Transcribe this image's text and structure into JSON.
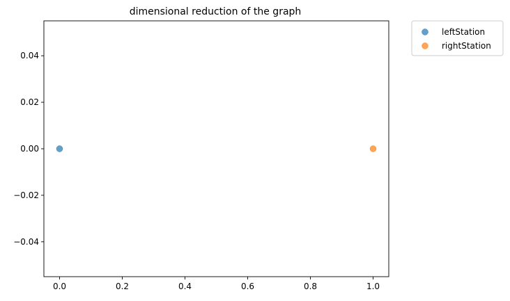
{
  "chart_data": {
    "type": "scatter",
    "title": "dimensional reduction of the graph",
    "xlabel": "",
    "ylabel": "",
    "xlim": [
      -0.05,
      1.05
    ],
    "ylim": [
      -0.055,
      0.055
    ],
    "xticks": [
      0.0,
      0.2,
      0.4,
      0.6,
      0.8,
      1.0
    ],
    "xtick_labels": [
      "0.0",
      "0.2",
      "0.4",
      "0.6",
      "0.8",
      "1.0"
    ],
    "yticks": [
      -0.04,
      -0.02,
      0.0,
      0.02,
      0.04
    ],
    "ytick_labels": [
      "−0.04",
      "−0.02",
      "0.00",
      "0.02",
      "0.04"
    ],
    "grid": false,
    "legend_position": "outside upper right",
    "series": [
      {
        "name": "leftStation",
        "color": "#1f77b4",
        "points": [
          {
            "x": 0.0,
            "y": 0.0
          }
        ]
      },
      {
        "name": "rightStation",
        "color": "#ff7f0e",
        "points": [
          {
            "x": 1.0,
            "y": 0.0
          }
        ]
      }
    ]
  }
}
